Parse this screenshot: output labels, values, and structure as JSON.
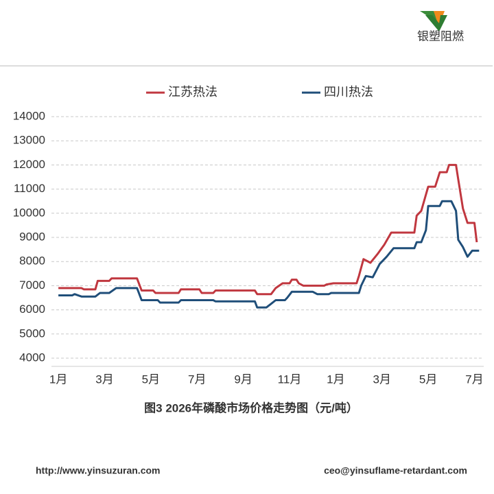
{
  "header": {
    "logo_text": "银塑阻燃"
  },
  "chart_data": {
    "type": "line",
    "title": "图3 2026年磷酸市场价格走势图（元/吨）",
    "xlim": [
      -0.3,
      18.4
    ],
    "xticks": [
      {
        "value": 0,
        "label": "1月"
      },
      {
        "value": 2,
        "label": "3月"
      },
      {
        "value": 4,
        "label": "5月"
      },
      {
        "value": 6,
        "label": "7月"
      },
      {
        "value": 8,
        "label": "9月"
      },
      {
        "value": 10,
        "label": "11月"
      },
      {
        "value": 12,
        "label": "1月"
      },
      {
        "value": 14,
        "label": "3月"
      },
      {
        "value": 16,
        "label": "5月"
      },
      {
        "value": 18,
        "label": "7月"
      }
    ],
    "ylim": [
      4000,
      14000
    ],
    "yticks": [
      4000,
      5000,
      6000,
      7000,
      8000,
      9000,
      10000,
      11000,
      12000,
      13000,
      14000
    ],
    "grid": true,
    "legend": "top",
    "series": [
      {
        "name": "江苏热法",
        "color": "#c0373f",
        "x": [
          0,
          1.0,
          1.1,
          1.6,
          1.7,
          2.2,
          2.3,
          3.4,
          3.6,
          4.1,
          4.2,
          5.2,
          5.3,
          6.1,
          6.2,
          6.7,
          6.8,
          8.5,
          8.6,
          9.2,
          9.4,
          9.7,
          10.0,
          10.1,
          10.3,
          10.4,
          10.6,
          11.5,
          11.6,
          11.9,
          12.9,
          13.0,
          13.2,
          13.5,
          13.8,
          14.1,
          14.4,
          15.4,
          15.5,
          15.7,
          16.0,
          16.3,
          16.5,
          16.8,
          16.9,
          17.2,
          17.3,
          17.5,
          17.7,
          18.0,
          18.1
        ],
        "values": [
          6900,
          6900,
          6850,
          6850,
          7200,
          7200,
          7300,
          7300,
          6800,
          6800,
          6700,
          6700,
          6850,
          6850,
          6700,
          6700,
          6800,
          6800,
          6650,
          6650,
          6900,
          7100,
          7100,
          7250,
          7250,
          7100,
          7000,
          7000,
          7050,
          7100,
          7100,
          7400,
          8100,
          7950,
          8300,
          8700,
          9200,
          9200,
          9900,
          10100,
          11100,
          11100,
          11700,
          11700,
          12000,
          12000,
          11400,
          10200,
          9600,
          9600,
          8800
        ]
      },
      {
        "name": "四川热法",
        "color": "#1f4e79",
        "x": [
          0,
          0.6,
          0.7,
          1.0,
          1.6,
          1.8,
          2.2,
          2.5,
          3.4,
          3.6,
          4.3,
          4.4,
          5.2,
          5.3,
          6.7,
          6.8,
          8.5,
          8.6,
          9.0,
          9.2,
          9.4,
          9.8,
          9.9,
          10.1,
          11.0,
          11.2,
          11.7,
          11.8,
          13.0,
          13.1,
          13.3,
          13.6,
          13.9,
          14.2,
          14.5,
          15.4,
          15.5,
          15.7,
          15.9,
          16.0,
          16.5,
          16.6,
          17.0,
          17.2,
          17.3,
          17.5,
          17.7,
          17.9,
          18.2
        ],
        "values": [
          6600,
          6600,
          6650,
          6550,
          6550,
          6700,
          6700,
          6900,
          6900,
          6400,
          6400,
          6300,
          6300,
          6400,
          6400,
          6350,
          6350,
          6100,
          6100,
          6250,
          6400,
          6400,
          6500,
          6750,
          6750,
          6650,
          6650,
          6700,
          6700,
          7000,
          7400,
          7350,
          7900,
          8200,
          8550,
          8550,
          8800,
          8800,
          9300,
          10300,
          10300,
          10500,
          10500,
          10100,
          8900,
          8600,
          8200,
          8450,
          8450
        ]
      }
    ]
  },
  "footer": {
    "left": "http://www.yinsuzuran.com",
    "right": "ceo@yinsuflame-retardant.com"
  }
}
